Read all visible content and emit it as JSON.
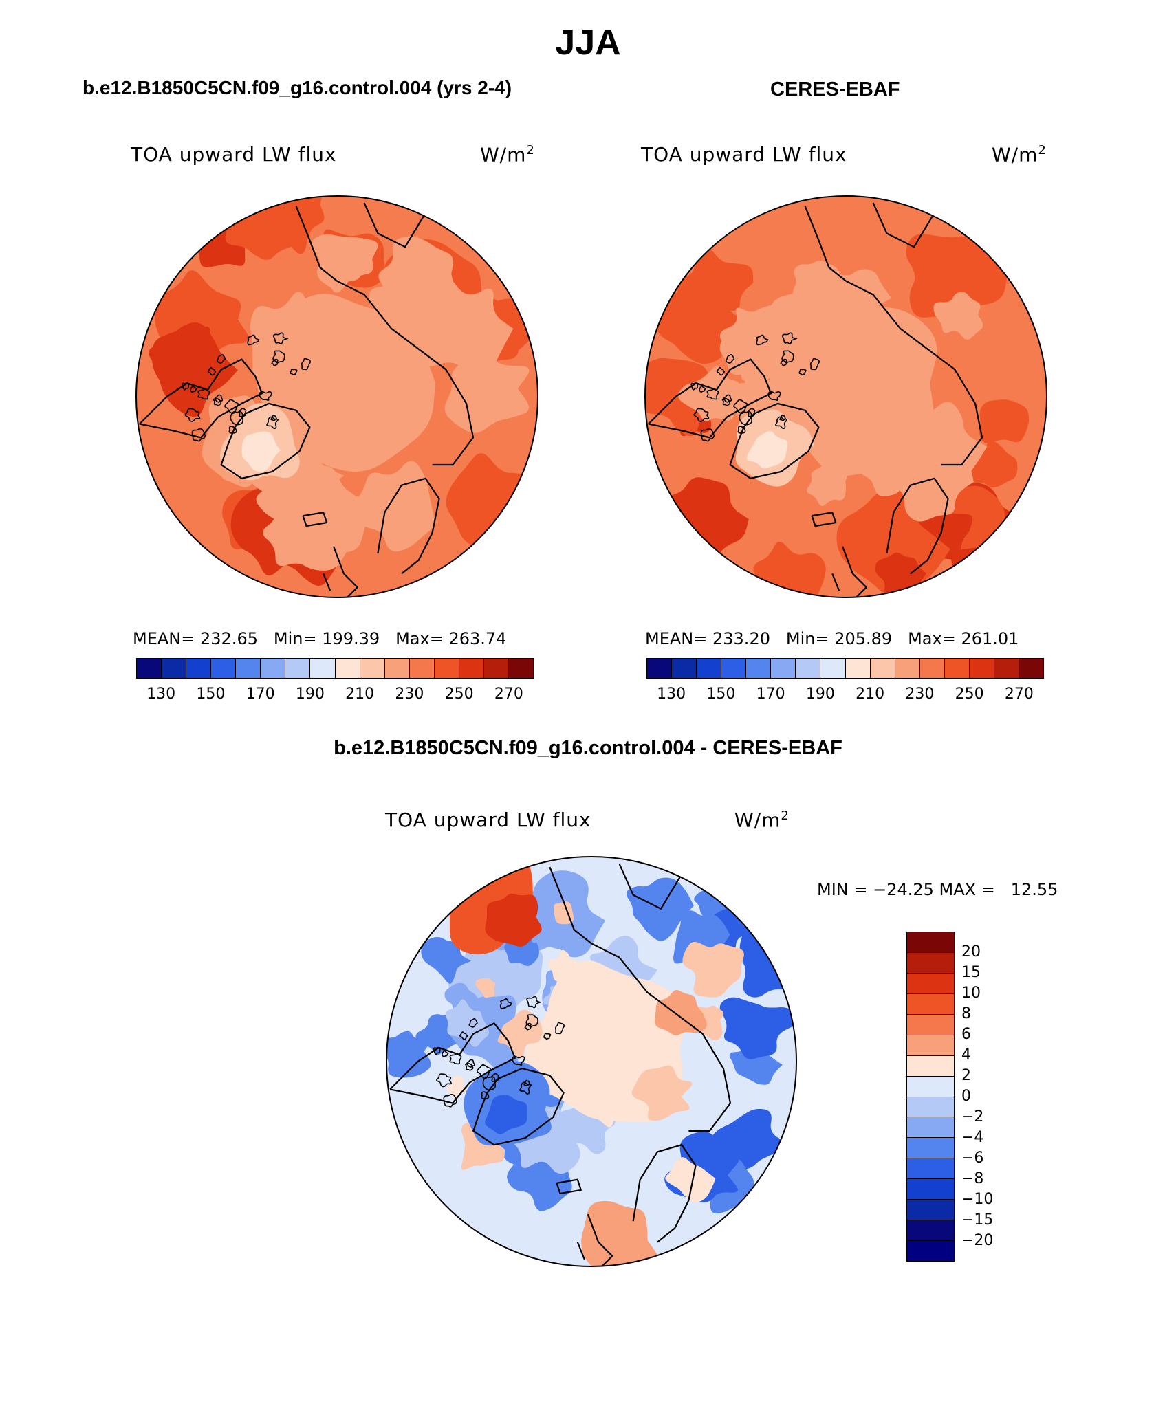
{
  "title": "JJA",
  "panels": {
    "model": {
      "title": "b.e12.B1850C5CN.f09_g16.control.004 (yrs 2-4)",
      "variable": "TOA upward LW flux",
      "units_base": "W/m",
      "units_exp": "2",
      "stats": {
        "mean_label": "MEAN=",
        "mean": "232.65",
        "min_label": "Min=",
        "min": "199.39",
        "max_label": "Max=",
        "max": "263.74"
      }
    },
    "obs": {
      "title": "CERES-EBAF",
      "variable": "TOA upward LW flux",
      "units_base": "W/m",
      "units_exp": "2",
      "stats": {
        "mean_label": "MEAN=",
        "mean": "233.20",
        "min_label": "Min=",
        "min": "205.89",
        "max_label": "Max=",
        "max": "261.01"
      }
    },
    "diff": {
      "title": "b.e12.B1850C5CN.f09_g16.control.004 - CERES-EBAF",
      "variable": "TOA upward LW flux",
      "units_base": "W/m",
      "units_exp": "2",
      "minmax": "MIN = −24.25 MAX =   12.55"
    }
  },
  "colorbar_abs": {
    "colors": [
      "#08087a",
      "#0b2aa6",
      "#1440d0",
      "#2d5fe6",
      "#5484ee",
      "#87a8f2",
      "#b4c9f6",
      "#dde8fb",
      "#fde4d4",
      "#fcc6aa",
      "#f7a07a",
      "#f4784c",
      "#ef5426",
      "#dc3412",
      "#b51e0a",
      "#7a0606"
    ],
    "labels": [
      "130",
      "150",
      "170",
      "190",
      "210",
      "230",
      "250",
      "270"
    ]
  },
  "colorbar_diff": {
    "colors": [
      "#7a0606",
      "#b51e0a",
      "#dc3412",
      "#ef5426",
      "#f4784c",
      "#f7a07a",
      "#fde4d4",
      "#dde8fb",
      "#b4c9f6",
      "#87a8f2",
      "#5484ee",
      "#2d5fe6",
      "#1440d0",
      "#0b2aa6",
      "#08087a",
      "#000080"
    ],
    "labels": [
      "20",
      "15",
      "10",
      "8",
      "6",
      "4",
      "2",
      "0",
      "−2",
      "−4",
      "−6",
      "−8",
      "−10",
      "−15",
      "−20"
    ]
  },
  "map_colors": {
    "abs_base": "#f47c4e",
    "abs_mid": "#f7a07a",
    "abs_light": "#fcc6aa",
    "abs_lighter": "#fde4d4",
    "abs_dark": "#ef5426",
    "abs_darker": "#dc3412",
    "diff_base": "#dde8fb",
    "diff_b1": "#b4c9f6",
    "diff_b2": "#87a8f2",
    "diff_b3": "#5484ee",
    "diff_b4": "#2d5fe6",
    "diff_r1": "#fde4d4",
    "diff_r2": "#fcc6aa",
    "diff_r3": "#f7a07a",
    "diff_r4": "#ef5426",
    "diff_r5": "#dc3412"
  }
}
